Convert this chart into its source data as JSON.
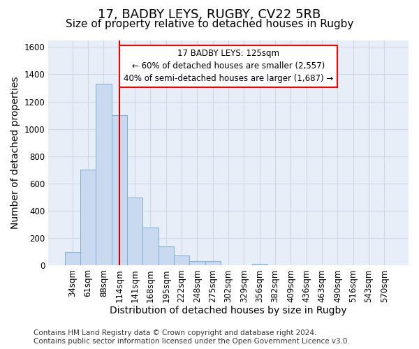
{
  "title_line1": "17, BADBY LEYS, RUGBY, CV22 5RB",
  "title_line2": "Size of property relative to detached houses in Rugby",
  "xlabel": "Distribution of detached houses by size in Rugby",
  "ylabel": "Number of detached properties",
  "bar_color": "#c9d9ef",
  "bar_edge_color": "#7bafd4",
  "categories": [
    "34sqm",
    "61sqm",
    "88sqm",
    "114sqm",
    "141sqm",
    "168sqm",
    "195sqm",
    "222sqm",
    "248sqm",
    "275sqm",
    "302sqm",
    "329sqm",
    "356sqm",
    "382sqm",
    "409sqm",
    "436sqm",
    "463sqm",
    "490sqm",
    "516sqm",
    "543sqm",
    "570sqm"
  ],
  "values": [
    100,
    700,
    1330,
    1100,
    500,
    280,
    140,
    75,
    35,
    35,
    0,
    0,
    15,
    0,
    0,
    0,
    0,
    0,
    0,
    0,
    0
  ],
  "ylim": [
    0,
    1650
  ],
  "yticks": [
    0,
    200,
    400,
    600,
    800,
    1000,
    1200,
    1400,
    1600
  ],
  "vline_x": 3.0,
  "vline_color": "#cc0000",
  "ann_line1": "17 BADBY LEYS: 125sqm",
  "ann_line2": "← 60% of detached houses are smaller (2,557)",
  "ann_line3": "40% of semi-detached houses are larger (1,687) →",
  "footer_text": "Contains HM Land Registry data © Crown copyright and database right 2024.\nContains public sector information licensed under the Open Government Licence v3.0.",
  "background_color": "#e8eef8",
  "grid_color": "#d0d8e8",
  "title_fontsize": 13,
  "subtitle_fontsize": 11,
  "axis_label_fontsize": 10,
  "tick_fontsize": 8.5,
  "footer_fontsize": 7.5
}
